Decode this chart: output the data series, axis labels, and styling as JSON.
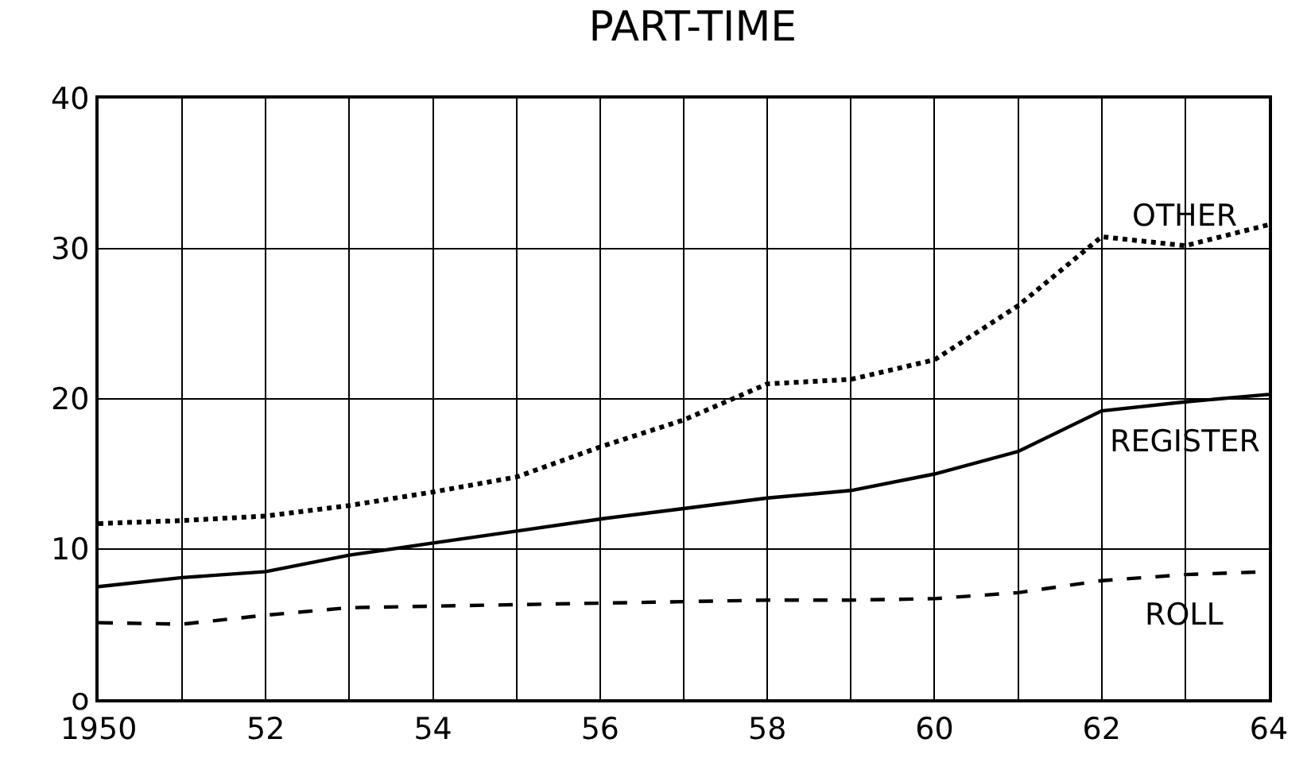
{
  "chart_data": {
    "type": "line",
    "title": "PART-TIME",
    "x": [
      1950,
      1951,
      1952,
      1953,
      1954,
      1955,
      1956,
      1957,
      1958,
      1959,
      1960,
      1961,
      1962,
      1963,
      1964
    ],
    "series": [
      {
        "name": "OTHER",
        "color": "#000000",
        "line_style": "dotted",
        "values": [
          11.7,
          11.9,
          12.2,
          12.9,
          13.8,
          14.8,
          16.8,
          18.6,
          21.0,
          21.3,
          22.6,
          26.2,
          30.8,
          30.2,
          31.6
        ]
      },
      {
        "name": "REGISTER",
        "color": "#000000",
        "line_style": "solid",
        "values": [
          7.5,
          8.1,
          8.5,
          9.6,
          10.4,
          11.2,
          12.0,
          12.7,
          13.4,
          13.9,
          15.0,
          16.5,
          19.2,
          19.8,
          20.3
        ]
      },
      {
        "name": "ROLL",
        "color": "#000000",
        "line_style": "dashed",
        "values": [
          5.1,
          5.0,
          5.6,
          6.1,
          6.2,
          6.3,
          6.4,
          6.5,
          6.6,
          6.6,
          6.7,
          7.1,
          7.9,
          8.3,
          8.5
        ]
      }
    ],
    "xlim": [
      1950,
      1964
    ],
    "xticks": [
      1950,
      {
        "value": 1951,
        "label": null
      },
      {
        "value": 1952,
        "label": "52"
      },
      {
        "value": 1953,
        "label": null
      },
      {
        "value": 1954,
        "label": "54"
      },
      {
        "value": 1955,
        "label": null
      },
      {
        "value": 1956,
        "label": "56"
      },
      {
        "value": 1957,
        "label": null
      },
      {
        "value": 1958,
        "label": "58"
      },
      {
        "value": 1959,
        "label": null
      },
      {
        "value": 1960,
        "label": "60"
      },
      {
        "value": 1961,
        "label": null
      },
      {
        "value": 1962,
        "label": "62"
      },
      {
        "value": 1963,
        "label": null
      },
      {
        "value": 1964,
        "label": "64"
      }
    ],
    "ylim": [
      0,
      40
    ],
    "yticks": [
      {
        "value": 0,
        "label": "o"
      },
      10,
      20,
      30,
      40
    ],
    "grid": true,
    "legend": false,
    "marker": "none"
  }
}
